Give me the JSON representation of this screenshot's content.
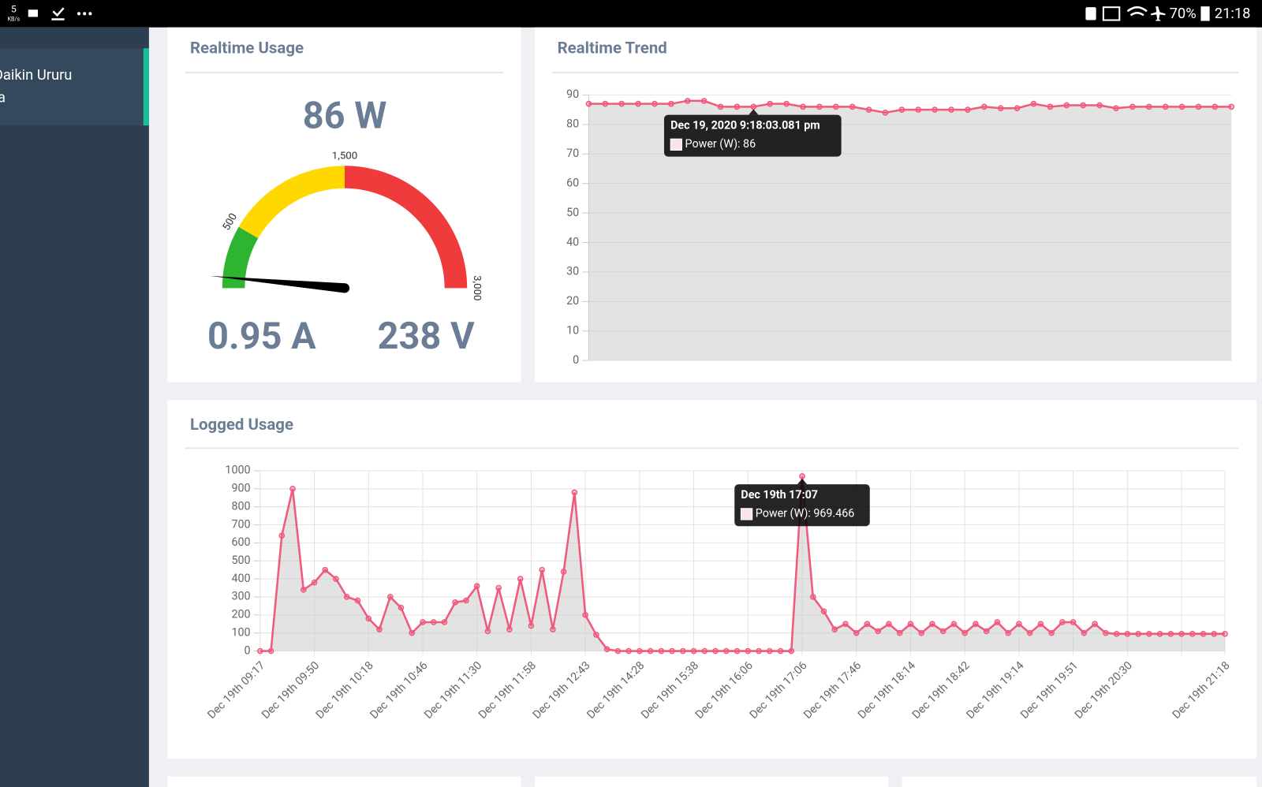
{
  "status_bar": {
    "speed": "5",
    "speed_unit": "KB/s",
    "battery": "70%",
    "time": "21:18"
  },
  "sidebar": {
    "item_line1": "Daikin Ururu",
    "item_line2": "a"
  },
  "realtime_usage": {
    "title": "Realtime Usage",
    "power": "86 W",
    "current": "0.95 A",
    "voltage": "238 V",
    "gauge": {
      "value": 86,
      "min": 0,
      "max": 3000,
      "bands": [
        {
          "from": 0,
          "to": 500,
          "color": "#2db532"
        },
        {
          "from": 500,
          "to": 1500,
          "color": "#ffd800"
        },
        {
          "from": 1500,
          "to": 3000,
          "color": "#ef3b3b"
        }
      ],
      "ticks": [
        500,
        {
          "value": 1500,
          "label": "1,500"
        },
        {
          "value": 3000,
          "label": "3,000"
        }
      ]
    }
  },
  "realtime_trend": {
    "title": "Realtime Trend",
    "chart": {
      "type": "line",
      "color": "#ef5a7d",
      "ylim": [
        0,
        90
      ],
      "yticks": [
        0,
        10,
        20,
        30,
        40,
        50,
        60,
        70,
        80,
        90
      ],
      "grid": true,
      "values": [
        87,
        87,
        87,
        87,
        87,
        87,
        88,
        88,
        86,
        86,
        86,
        87,
        87,
        86,
        86,
        86,
        86,
        85,
        84,
        85,
        85,
        85,
        85,
        85,
        86,
        85.5,
        85.5,
        87,
        86,
        86.5,
        86.5,
        86.5,
        85.5,
        86,
        86,
        86,
        86,
        86,
        86,
        86
      ],
      "tooltip_index": 10,
      "tooltip": {
        "title": "Dec 19, 2020 9:18:03.081 pm",
        "text": "Power (W): 86"
      }
    }
  },
  "logged_usage": {
    "title": "Logged Usage",
    "chart": {
      "type": "line",
      "color": "#ef5a7d",
      "ylim": [
        0,
        1000
      ],
      "yticks": [
        0,
        100,
        200,
        300,
        400,
        500,
        600,
        700,
        800,
        900,
        1000
      ],
      "grid": true,
      "categories": [
        "Dec 19th 09:17",
        null,
        null,
        null,
        null,
        "Dec 19th 09:50",
        null,
        null,
        null,
        null,
        "Dec 19th 10:18",
        null,
        null,
        null,
        null,
        "Dec 19th 10:46",
        null,
        null,
        null,
        null,
        "Dec 19th 11:30",
        null,
        null,
        null,
        null,
        "Dec 19th 11:58",
        null,
        null,
        null,
        null,
        "Dec 19th 12:43",
        null,
        null,
        null,
        null,
        "Dec 19th 14:28",
        null,
        null,
        null,
        null,
        "Dec 19th 15:38",
        null,
        null,
        null,
        null,
        "Dec 19th 16:06",
        null,
        null,
        null,
        null,
        "Dec 19th 17:06",
        null,
        null,
        null,
        null,
        "Dec 19th 17:46",
        null,
        null,
        null,
        null,
        "Dec 19th 18:14",
        null,
        null,
        null,
        null,
        "Dec 19th 18:42",
        null,
        null,
        null,
        null,
        "Dec 19th 19:14",
        null,
        null,
        null,
        null,
        "Dec 19th 19:51",
        null,
        null,
        null,
        null,
        "Dec 19th 20:30",
        null,
        null,
        null,
        null,
        null,
        null,
        null,
        null,
        "Dec 19th 21:18"
      ],
      "values": [
        0,
        0,
        640,
        900,
        340,
        380,
        450,
        400,
        300,
        280,
        180,
        120,
        300,
        240,
        100,
        160,
        160,
        160,
        270,
        280,
        360,
        110,
        350,
        120,
        400,
        140,
        450,
        120,
        440,
        880,
        200,
        90,
        10,
        0,
        0,
        0,
        0,
        0,
        0,
        0,
        0,
        0,
        0,
        0,
        0,
        0,
        0,
        0,
        0,
        0,
        969.466,
        300,
        220,
        120,
        150,
        100,
        150,
        110,
        150,
        100,
        150,
        100,
        150,
        110,
        150,
        100,
        150,
        110,
        160,
        100,
        150,
        100,
        150,
        100,
        160,
        160,
        100,
        150,
        100,
        95,
        95,
        95,
        95,
        95,
        95,
        95,
        95,
        95,
        95,
        95
      ],
      "tooltip_index": 50,
      "tooltip": {
        "title": "Dec 19th 17:07",
        "text": "Power (W): 969.466"
      }
    }
  }
}
